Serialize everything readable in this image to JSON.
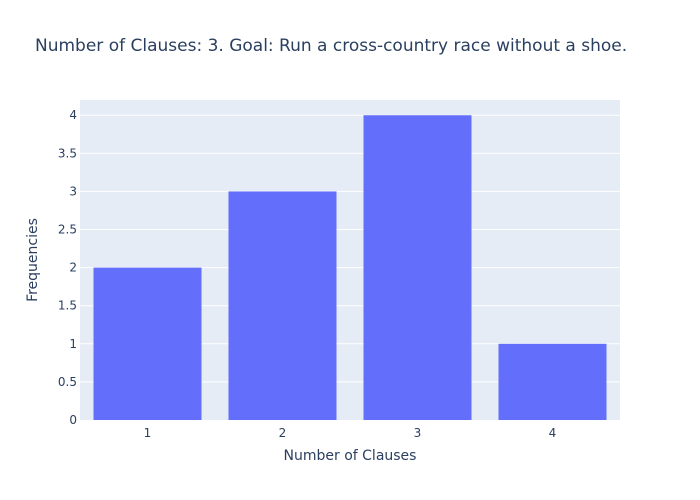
{
  "chart_data": {
    "type": "bar",
    "title": "Number of Clauses: 3. Goal: Run a cross-country race without a shoe.",
    "xlabel": "Number of Clauses",
    "ylabel": "Frequencies",
    "categories": [
      "1",
      "2",
      "3",
      "4"
    ],
    "values": [
      2,
      3,
      4,
      1
    ],
    "ylim": [
      0,
      4.2
    ],
    "yticks": [
      "0",
      "0.5",
      "1",
      "1.5",
      "2",
      "2.5",
      "3",
      "3.5",
      "4"
    ],
    "grid": true,
    "legend": "none"
  },
  "colors": {
    "bar": "#636efa",
    "plot_bg": "#e5ecf6",
    "grid": "#ffffff",
    "text": "#2a3f5f"
  }
}
